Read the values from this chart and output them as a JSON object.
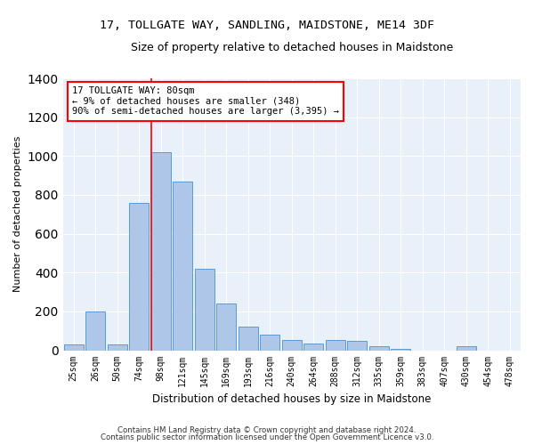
{
  "title": "17, TOLLGATE WAY, SANDLING, MAIDSTONE, ME14 3DF",
  "subtitle": "Size of property relative to detached houses in Maidstone",
  "xlabel": "Distribution of detached houses by size in Maidstone",
  "ylabel": "Number of detached properties",
  "categories": [
    "25sqm",
    "26sqm",
    "50sqm",
    "74sqm",
    "98sqm",
    "121sqm",
    "145sqm",
    "169sqm",
    "193sqm",
    "216sqm",
    "240sqm",
    "264sqm",
    "288sqm",
    "312sqm",
    "335sqm",
    "359sqm",
    "383sqm",
    "407sqm",
    "430sqm",
    "454sqm",
    "478sqm"
  ],
  "values": [
    30,
    200,
    30,
    760,
    1020,
    870,
    420,
    240,
    120,
    80,
    55,
    35,
    55,
    50,
    20,
    5,
    0,
    0,
    20,
    0,
    0
  ],
  "bar_color": "#aec6e8",
  "bar_edge_color": "#5b9bd5",
  "vline_pos": 3.57,
  "vline_color": "red",
  "annotation_text": "17 TOLLGATE WAY: 80sqm\n← 9% of detached houses are smaller (348)\n90% of semi-detached houses are larger (3,395) →",
  "annotation_box_color": "white",
  "annotation_box_edge": "red",
  "ylim": [
    0,
    1400
  ],
  "yticks": [
    0,
    200,
    400,
    600,
    800,
    1000,
    1200,
    1400
  ],
  "background_color": "#e8f0fa",
  "grid_color": "white",
  "footer1": "Contains HM Land Registry data © Crown copyright and database right 2024.",
  "footer2": "Contains public sector information licensed under the Open Government Licence v3.0."
}
